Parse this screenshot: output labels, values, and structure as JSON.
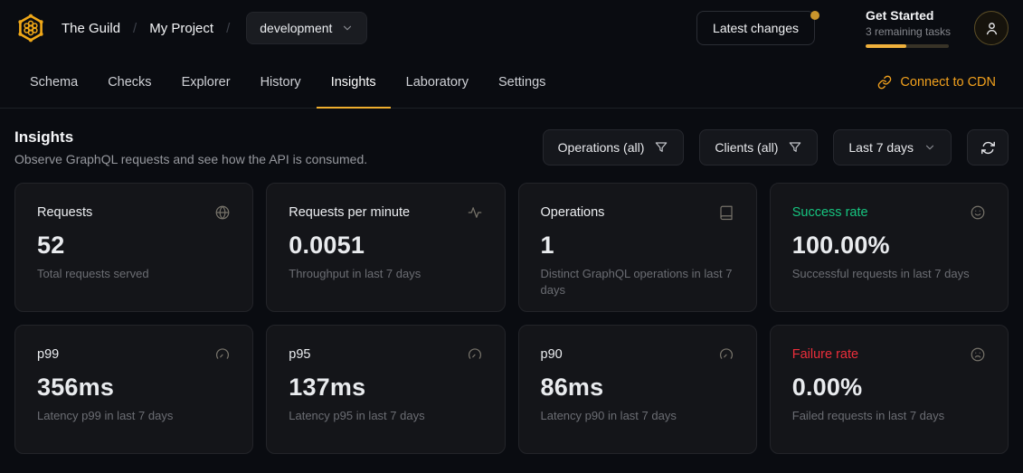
{
  "header": {
    "brand": "The Guild",
    "separator": "/",
    "project": "My Project",
    "environment_select": {
      "value": "development"
    },
    "latest_changes_button": "Latest changes",
    "get_started": {
      "title": "Get Started",
      "subtitle": "3 remaining tasks",
      "progress_percent": 49
    }
  },
  "tabs": {
    "items": [
      {
        "label": "Schema",
        "active": false
      },
      {
        "label": "Checks",
        "active": false
      },
      {
        "label": "Explorer",
        "active": false
      },
      {
        "label": "History",
        "active": false
      },
      {
        "label": "Insights",
        "active": true
      },
      {
        "label": "Laboratory",
        "active": false
      },
      {
        "label": "Settings",
        "active": false
      }
    ],
    "connect_cdn": "Connect to CDN"
  },
  "insights": {
    "title": "Insights",
    "subtitle": "Observe GraphQL requests and see how the API is consumed.",
    "filters": {
      "operations": "Operations (all)",
      "clients": "Clients (all)",
      "date_range": "Last 7 days",
      "refresh_icon": "refresh-icon"
    }
  },
  "cards": [
    {
      "label": "Requests",
      "value": "52",
      "description": "Total requests served",
      "icon": "globe-icon",
      "label_color": ""
    },
    {
      "label": "Requests per minute",
      "value": "0.0051",
      "description": "Throughput in last 7 days",
      "icon": "activity-icon",
      "label_color": ""
    },
    {
      "label": "Operations",
      "value": "1",
      "description": "Distinct GraphQL operations in last 7 days",
      "icon": "book-icon",
      "label_color": ""
    },
    {
      "label": "Success rate",
      "value": "100.00%",
      "description": "Successful requests in last 7 days",
      "icon": "smile-icon",
      "label_color": "#16c47f"
    },
    {
      "label": "p99",
      "value": "356ms",
      "description": "Latency p99 in last 7 days",
      "icon": "gauge-icon",
      "label_color": ""
    },
    {
      "label": "p95",
      "value": "137ms",
      "description": "Latency p95 in last 7 days",
      "icon": "gauge-icon",
      "label_color": ""
    },
    {
      "label": "p90",
      "value": "86ms",
      "description": "Latency p90 in last 7 days",
      "icon": "gauge-icon",
      "label_color": ""
    },
    {
      "label": "Failure rate",
      "value": "0.00%",
      "description": "Failed requests in last 7 days",
      "icon": "frown-icon",
      "label_color": "#ed2e3b"
    }
  ],
  "colors": {
    "accent": "#f0b13c",
    "tab_underline": "#efae2e",
    "link": "#f2a11d",
    "success": "#16c47f",
    "danger": "#ed2e3b"
  }
}
